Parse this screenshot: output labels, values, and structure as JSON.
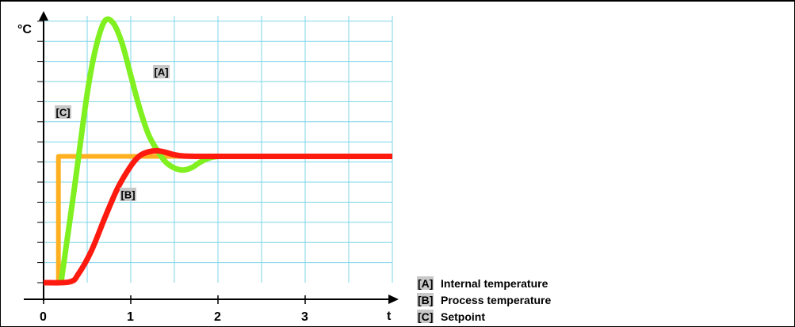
{
  "chart_data": {
    "type": "line",
    "title": "",
    "xlabel": "t",
    "ylabel": "°C",
    "xlim": [
      0,
      4
    ],
    "ylim": [
      0,
      6.6
    ],
    "grid": true,
    "x_ticks": [
      "0",
      "1",
      "2",
      "3"
    ],
    "legend_position": "bottom-right",
    "series": [
      {
        "key": "A",
        "tag": "[A]",
        "name": "Internal temperature",
        "color": "#80f020",
        "x": [
          0.2,
          0.35,
          0.5,
          0.6,
          0.7,
          0.8,
          0.9,
          1.0,
          1.1,
          1.2,
          1.3,
          1.4,
          1.5,
          1.6,
          1.7,
          1.8,
          1.9,
          2.0
        ],
        "y": [
          0.0,
          2.3,
          4.7,
          5.85,
          6.5,
          6.45,
          5.95,
          5.15,
          4.35,
          3.7,
          3.3,
          3.0,
          2.85,
          2.8,
          2.86,
          3.0,
          3.1,
          3.14
        ]
      },
      {
        "key": "B",
        "tag": "[B]",
        "name": "Process temperature",
        "color": "#ff1a10",
        "x": [
          0.0,
          0.3,
          0.4,
          0.55,
          0.7,
          0.85,
          1.0,
          1.1,
          1.2,
          1.3,
          1.4,
          1.5,
          1.6,
          1.8,
          2.0,
          2.5,
          3.0,
          3.5,
          4.0
        ],
        "y": [
          0.0,
          0.02,
          0.22,
          0.8,
          1.6,
          2.35,
          2.9,
          3.15,
          3.25,
          3.28,
          3.24,
          3.18,
          3.15,
          3.14,
          3.14,
          3.14,
          3.14,
          3.14,
          3.14
        ]
      },
      {
        "key": "C",
        "tag": "[C]",
        "name": "Setpoint",
        "color": "#ffb020",
        "x": [
          0.0,
          0.17,
          0.17,
          1.7
        ],
        "y": [
          0.0,
          0.0,
          3.14,
          3.14
        ]
      }
    ]
  }
}
